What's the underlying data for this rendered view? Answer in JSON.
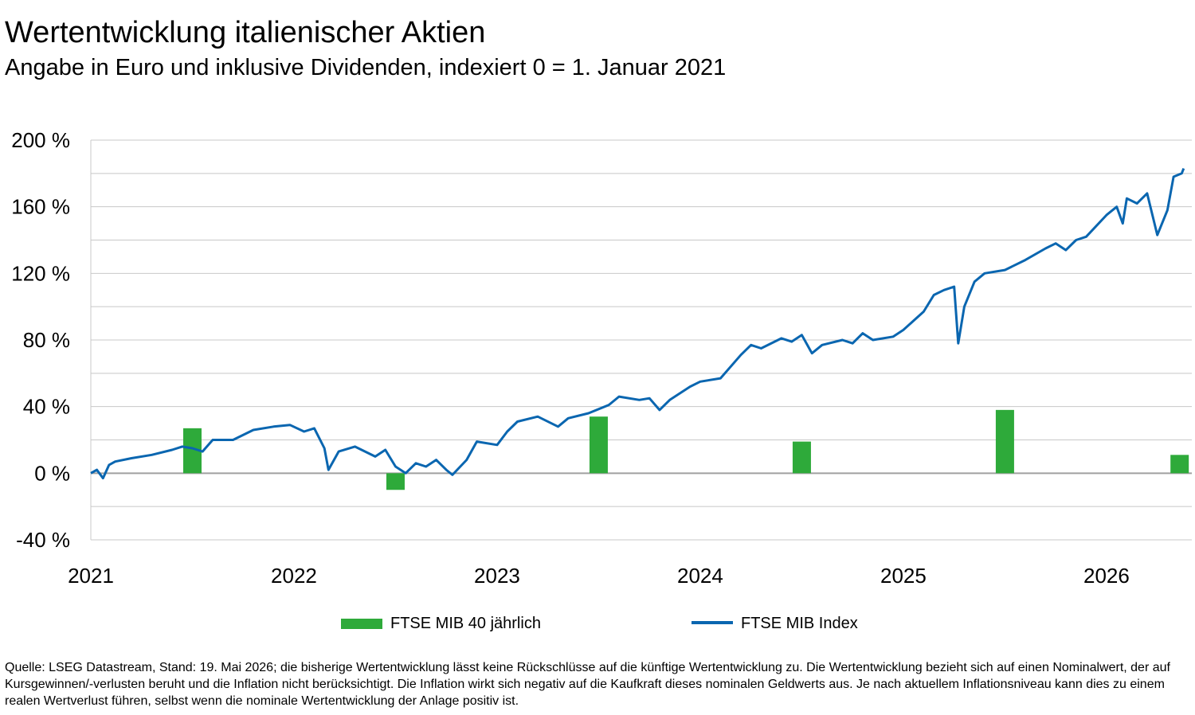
{
  "title": "Wertentwicklung italienischer Aktien",
  "subtitle": "Angabe in Euro und inklusive Dividenden, indexiert 0 = 1. Januar 2021",
  "source": "Quelle: LSEG Datastream, Stand: 19. Mai 2026; die bisherige Wertentwicklung lässt keine Rückschlüsse auf die künftige Wertentwicklung zu. Die Wertentwicklung bezieht sich auf einen Nominalwert, der auf Kursgewinnen/-verlusten beruht und die Inflation nicht berücksichtigt. Die Inflation wirkt sich negativ auf die Kaufkraft dieses nominalen Geldwerts aus. Je nach aktuellem Inflationsniveau kann dies zu einem realen Wertverlust führen, selbst wenn die nominale Wertentwicklung der Anlage positiv ist.",
  "colors": {
    "bar": "#2eaa3a",
    "line": "#0a66b0",
    "grid": "#c8c8c8",
    "zero": "#a0a0a0"
  },
  "chart_data": {
    "type": "bar+line",
    "ylim": [
      -40,
      200
    ],
    "y_ticks": [
      -40,
      0,
      40,
      80,
      120,
      160,
      200
    ],
    "y_tick_labels": [
      "-40 %",
      "0 %",
      "40 %",
      "80 %",
      "120 %",
      "160 %",
      "200 %"
    ],
    "x_tick_labels": [
      "2021",
      "2022",
      "2023",
      "2024",
      "2025",
      "2026"
    ],
    "x_ticks": [
      2021,
      2022,
      2023,
      2024,
      2025,
      2026
    ],
    "xlim": [
      2021.0,
      2026.42
    ],
    "grid": true,
    "legend": "bottom-center",
    "series": [
      {
        "name": "FTSE MIB 40 jährlich",
        "kind": "bar",
        "x": [
          2021.5,
          2022.5,
          2023.5,
          2024.5,
          2025.5,
          2026.36
        ],
        "values": [
          27,
          -10,
          34,
          19,
          38,
          11
        ]
      },
      {
        "name": "FTSE MIB Index",
        "kind": "line",
        "x": [
          2021.0,
          2021.03,
          2021.06,
          2021.09,
          2021.12,
          2021.2,
          2021.3,
          2021.4,
          2021.45,
          2021.5,
          2021.55,
          2021.6,
          2021.7,
          2021.8,
          2021.9,
          2021.98,
          2022.05,
          2022.1,
          2022.15,
          2022.17,
          2022.22,
          2022.3,
          2022.4,
          2022.45,
          2022.5,
          2022.55,
          2022.6,
          2022.65,
          2022.7,
          2022.75,
          2022.78,
          2022.85,
          2022.9,
          2023.0,
          2023.05,
          2023.1,
          2023.2,
          2023.3,
          2023.35,
          2023.45,
          2023.55,
          2023.6,
          2023.7,
          2023.75,
          2023.8,
          2023.85,
          2023.95,
          2024.0,
          2024.1,
          2024.2,
          2024.25,
          2024.3,
          2024.4,
          2024.45,
          2024.5,
          2024.55,
          2024.6,
          2024.7,
          2024.75,
          2024.8,
          2024.85,
          2024.95,
          2025.0,
          2025.1,
          2025.15,
          2025.2,
          2025.25,
          2025.27,
          2025.3,
          2025.35,
          2025.4,
          2025.5,
          2025.6,
          2025.7,
          2025.75,
          2025.8,
          2025.85,
          2025.9,
          2026.0,
          2026.05,
          2026.08,
          2026.1,
          2026.15,
          2026.2,
          2026.25,
          2026.3,
          2026.33,
          2026.37,
          2026.38
        ],
        "values": [
          0,
          2,
          -3,
          5,
          7,
          9,
          11,
          14,
          16,
          15,
          13,
          20,
          20,
          26,
          28,
          29,
          25,
          27,
          15,
          2,
          13,
          16,
          10,
          14,
          4,
          0,
          6,
          4,
          8,
          2,
          -1,
          8,
          19,
          17,
          25,
          31,
          34,
          28,
          33,
          36,
          41,
          46,
          44,
          45,
          38,
          44,
          52,
          55,
          57,
          71,
          77,
          75,
          81,
          79,
          83,
          72,
          77,
          80,
          78,
          84,
          80,
          82,
          86,
          97,
          107,
          110,
          112,
          78,
          100,
          115,
          120,
          122,
          128,
          135,
          138,
          134,
          140,
          142,
          155,
          160,
          150,
          165,
          162,
          168,
          143,
          158,
          178,
          180,
          183
        ]
      }
    ]
  },
  "legend": {
    "bar_label": "FTSE MIB 40 jährlich",
    "line_label": "FTSE MIB Index"
  }
}
